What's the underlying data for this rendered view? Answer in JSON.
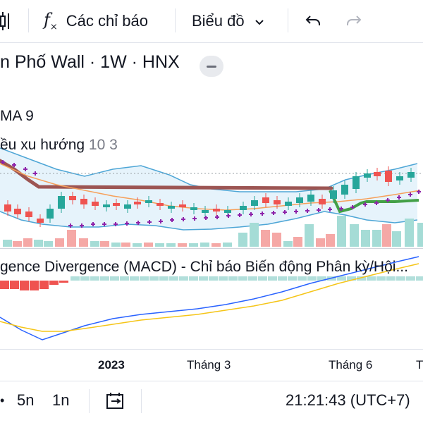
{
  "toolbar": {
    "indicators_label": "Các chỉ báo",
    "chart_type_label": "Biểu đồ",
    "icons": [
      "candles-icon",
      "fx-icon",
      "chevron-down-icon",
      "undo-icon",
      "redo-icon"
    ]
  },
  "legend": {
    "symbol_title": "n Phố Wall · 1W · HNX",
    "ma_label": "MA 9",
    "indicator_label": "ều xu hướng",
    "indicator_params": "10 3"
  },
  "macd": {
    "label": "gence Divergence (MACD) - Chỉ báo Biến động Phân kỳ/Hội..."
  },
  "x_axis": {
    "labels": [
      "2023",
      "Tháng 3",
      "Tháng 6",
      "T"
    ]
  },
  "bottom_bar": {
    "range_5d": "5n",
    "range_1d": "1n",
    "clock": "21:21:43 (UTC+7)",
    "icons": [
      "calendar-range-icon"
    ]
  },
  "colors": {
    "up": "#26a69a",
    "down": "#ef5350",
    "band": "#4ea6d6",
    "ma": "#f6a05a",
    "trend": "#9c5553",
    "supertrend": "#43a047",
    "sar": "#8e24aa",
    "macd": "#2962ff",
    "signal": "#f5c518"
  }
}
